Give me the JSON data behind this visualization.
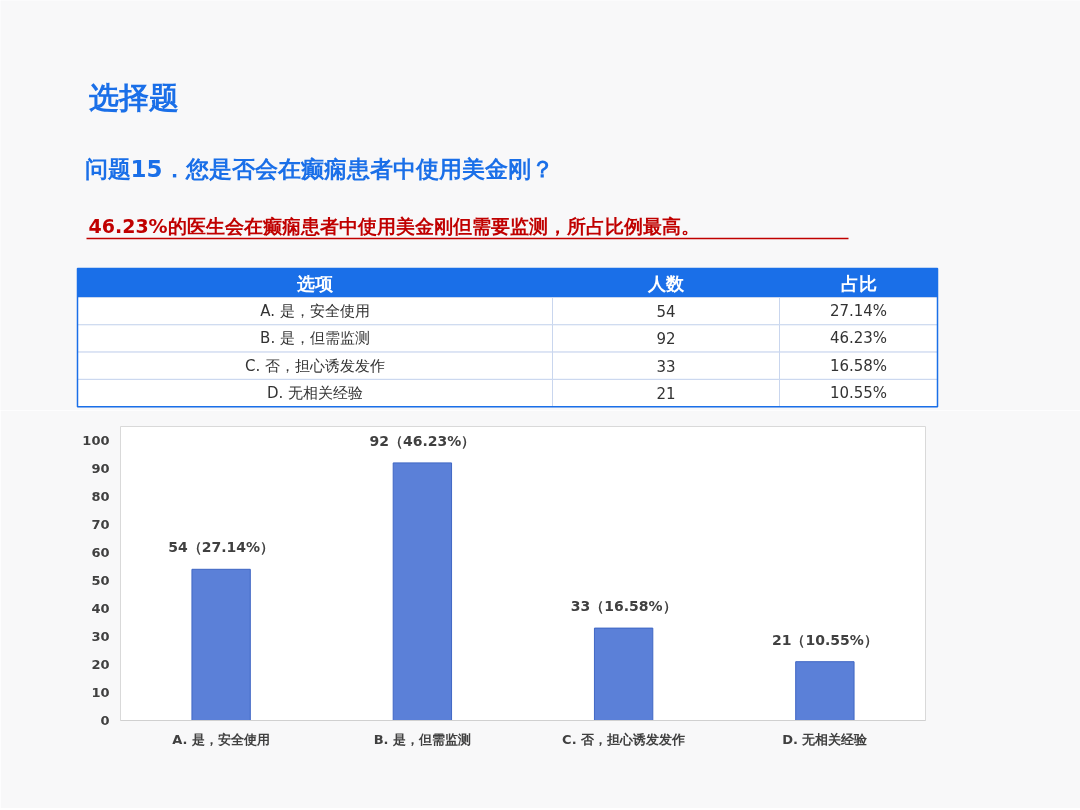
{
  "chart_data": [
    {
      "type": "other",
      "title": "选择题",
      "subtitle": "问题15．您是否会在癫痫患者中使用美金刚？",
      "annotations": [
        "46.23%的医生会在癫痫患者中使用美金刚但需要监测，所占比例最高。",
        "选项",
        "人数",
        "占比",
        "A. 是，安全使用",
        "54",
        "27.14%",
        "B. 是，但需监测",
        "92",
        "46.23%",
        "C. 否，担心诱发发作",
        "33",
        "16.58%",
        "D. 无相关经验",
        "21",
        "10.55%"
      ]
    },
    {
      "type": "bar",
      "categories": [
        "A. 是，安全使用",
        "B. 是，但需监测",
        "C. 否，担心诱发发作",
        "D. 无相关经验"
      ],
      "values": [
        54,
        92,
        33,
        21
      ],
      "color": "#5b80d8",
      "value_labels": [
        "54（27.14%）",
        "92（46.23%）",
        "33（16.58%）",
        "21（10.55%）"
      ],
      "ylim": [
        0,
        105
      ],
      "yticks": [
        0,
        10,
        20,
        30,
        40,
        50,
        60,
        70,
        80,
        90,
        100
      ],
      "grid": false
    }
  ]
}
